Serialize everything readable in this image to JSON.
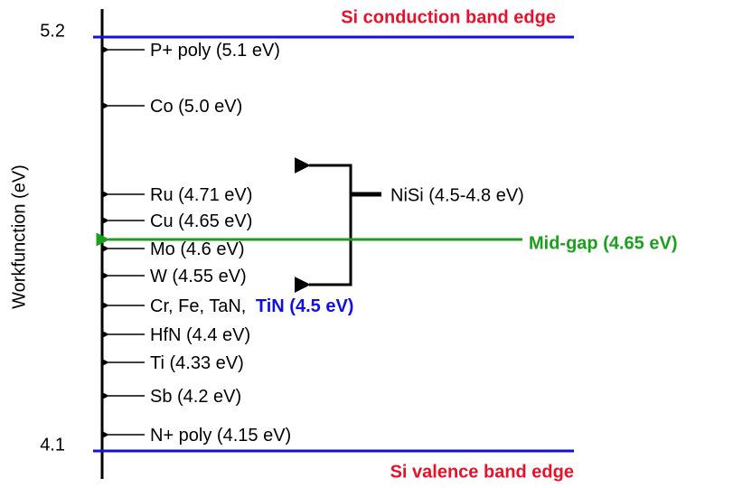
{
  "axis": {
    "label": "Workfunction (eV)",
    "top": "5.2",
    "bottom": "4.1"
  },
  "band_edges": {
    "conduction": "Si conduction band edge",
    "valence": "Si valence band edge"
  },
  "metals": [
    {
      "label": "P+ poly (5.1 eV)"
    },
    {
      "label": "Co (5.0 eV)"
    },
    {
      "label": "Ru (4.71 eV)"
    },
    {
      "label": "Cu (4.65 eV)"
    },
    {
      "label": "Mo (4.6 eV)"
    },
    {
      "label": "W (4.55 eV)"
    },
    {
      "label": "Cr, Fe, TaN, ",
      "highlight": "TiN (4.5 eV)"
    },
    {
      "label": "HfN (4.4 eV)"
    },
    {
      "label": "Ti (4.33 eV)"
    },
    {
      "label": "Sb (4.2 eV)"
    },
    {
      "label": "N+ poly (4.15 eV)"
    }
  ],
  "bracket": {
    "label": "NiSi (4.5-4.8 eV)"
  },
  "midgap": {
    "label": "Mid-gap (4.65 eV)"
  }
}
